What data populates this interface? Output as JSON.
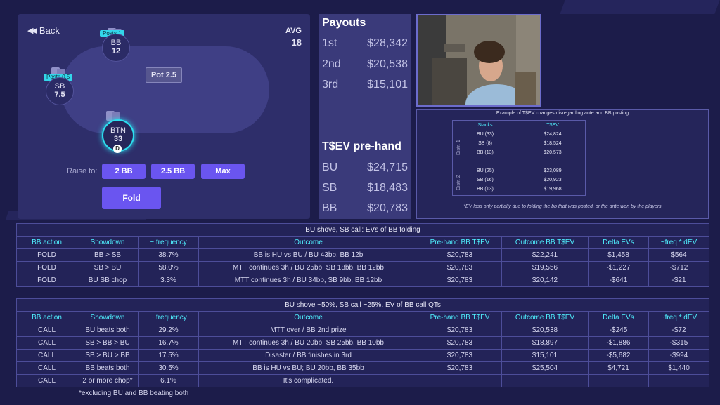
{
  "table": {
    "back_label": "Back",
    "avg_label": "AVG",
    "avg_value": "18",
    "pot_label": "Pot 2.5",
    "raise_label": "Raise to:",
    "raise_options": [
      "2 BB",
      "2.5 BB",
      "Max"
    ],
    "fold_label": "Fold",
    "dealer_label": "D",
    "seats": {
      "bb": {
        "name": "BB",
        "stack": "12",
        "badge": "Posts 1"
      },
      "sb": {
        "name": "SB",
        "stack": "7.5",
        "badge": "Posts 0.5"
      },
      "btn": {
        "name": "BTN",
        "stack": "33"
      }
    }
  },
  "payouts": {
    "title": "Payouts",
    "rows": [
      {
        "place": "1st",
        "amount": "$28,342"
      },
      {
        "place": "2nd",
        "amount": "$20,538"
      },
      {
        "place": "3rd",
        "amount": "$15,101"
      }
    ],
    "tsev_title": "T$EV pre-hand",
    "tsev_rows": [
      {
        "pos": "BU",
        "amount": "$24,715"
      },
      {
        "pos": "SB",
        "amount": "$18,483"
      },
      {
        "pos": "BB",
        "amount": "$20,783"
      }
    ]
  },
  "example": {
    "title": "Example of T$EV changes disregarding ante and BB posting",
    "col_stacks": "Stacks",
    "col_tsev": "T$EV",
    "distr1_label": "Distr. 1",
    "distr2_label": "Distr. 2",
    "distr1": [
      {
        "stack": "BU (33)",
        "tsev": "$24,824"
      },
      {
        "stack": "SB (8)",
        "tsev": "$18,524"
      },
      {
        "stack": "BB (13)",
        "tsev": "$20,573"
      }
    ],
    "distr2": [
      {
        "stack": "BU (25)",
        "tsev": "$23,089"
      },
      {
        "stack": "SB (16)",
        "tsev": "$20,923"
      },
      {
        "stack": "BB (13)",
        "tsev": "$19,968"
      }
    ],
    "note": "*EV loss only partially due to folding the bb that was posted, or the ante won by the players"
  },
  "table1": {
    "title": "BU shove, SB call: EVs of BB folding",
    "headers": [
      "BB action",
      "Showdown",
      "~ frequency",
      "Outcome",
      "Pre-hand BB T$EV",
      "Outcome BB T$EV",
      "Delta EVs",
      "~freq * dEV"
    ],
    "rows": [
      [
        "FOLD",
        "BB > SB",
        "38.7%",
        "BB is HU vs BU / BU 43bb, BB 12b",
        "$20,783",
        "$22,241",
        "$1,458",
        "$564"
      ],
      [
        "FOLD",
        "SB > BU",
        "58.0%",
        "MTT continues 3h / BU 25bb, SB 18bb, BB 12bb",
        "$20,783",
        "$19,556",
        "-$1,227",
        "-$712"
      ],
      [
        "FOLD",
        "BU SB chop",
        "3.3%",
        "MTT continues 3h / BU 34bb, SB 9bb, BB 12bb",
        "$20,783",
        "$20,142",
        "-$641",
        "-$21"
      ]
    ]
  },
  "table2": {
    "title": "BU shove ~50%, SB call ~25%, EV of BB call QTs",
    "headers": [
      "BB action",
      "Showdown",
      "~ frequency",
      "Outcome",
      "Pre-hand BB T$EV",
      "Outcome BB T$EV",
      "Delta EVs",
      "~freq * dEV"
    ],
    "rows": [
      [
        "CALL",
        "BU beats both",
        "29.2%",
        "MTT over / BB 2nd prize",
        "$20,783",
        "$20,538",
        "-$245",
        "-$72"
      ],
      [
        "CALL",
        "SB > BB > BU",
        "16.7%",
        "MTT continues 3h / BU 20bb, SB 25bb, BB 10bb",
        "$20,783",
        "$18,897",
        "-$1,886",
        "-$315"
      ],
      [
        "CALL",
        "SB > BU > BB",
        "17.5%",
        "Disaster / BB finishes in 3rd",
        "$20,783",
        "$15,101",
        "-$5,682",
        "-$994"
      ],
      [
        "CALL",
        "BB beats both",
        "30.5%",
        "BB is HU vs BU; BU 20bb, BB 35bb",
        "$20,783",
        "$25,504",
        "$4,721",
        "$1,440"
      ],
      [
        "CALL",
        "2 or more chop*",
        "6.1%",
        "It's complicated.",
        "",
        "",
        "",
        ""
      ]
    ],
    "footnote": "*excluding BU and BB beating both"
  }
}
